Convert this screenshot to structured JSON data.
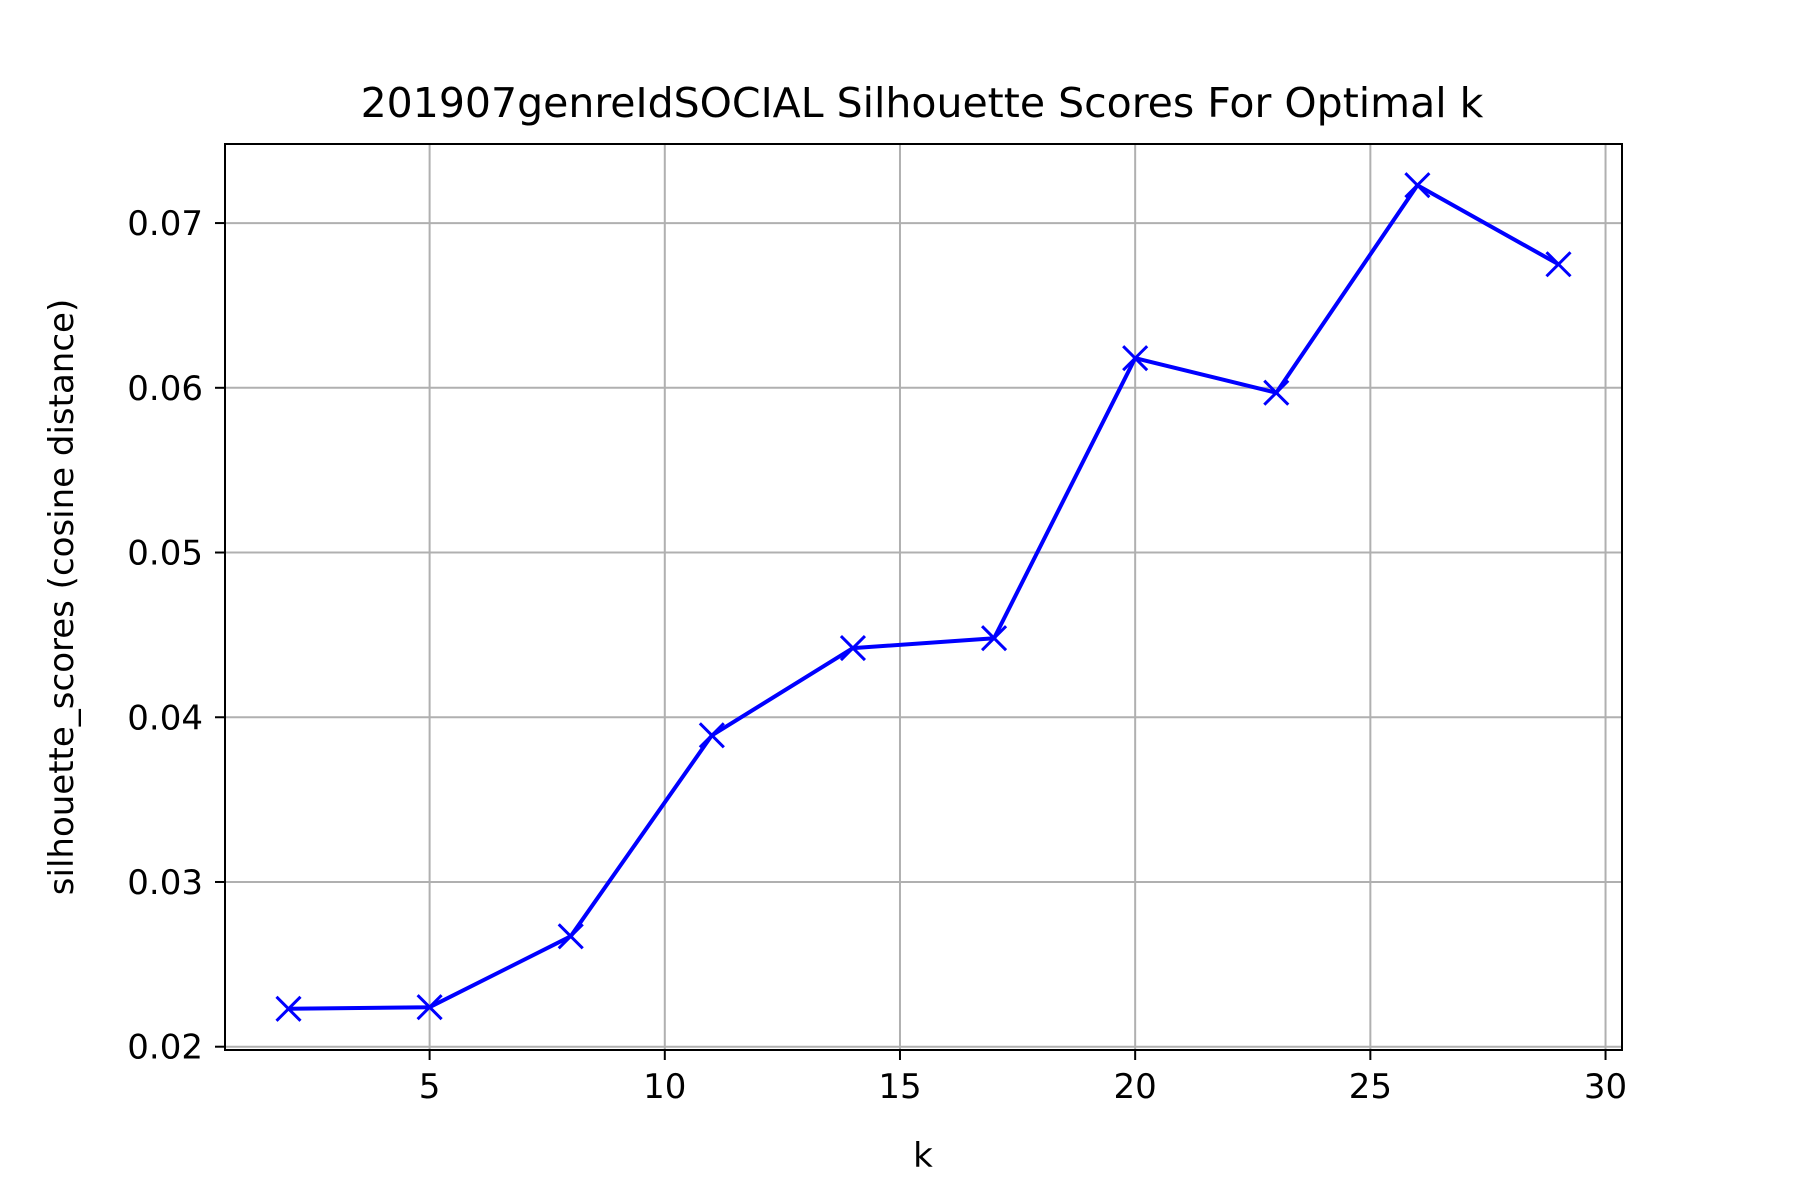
{
  "chart_data": {
    "type": "line",
    "title": "201907genreIdSOCIAL Silhouette Scores For Optimal k",
    "xlabel": "k",
    "ylabel": "silhouette_scores (cosine distance)",
    "x": [
      2,
      5,
      8,
      11,
      14,
      17,
      20,
      23,
      26,
      29
    ],
    "series": [
      {
        "values": [
          0.0223,
          0.0224,
          0.0267,
          0.0389,
          0.0442,
          0.0448,
          0.0618,
          0.0597,
          0.0723,
          0.0675
        ],
        "color": "#0000ff",
        "marker": "x"
      }
    ],
    "xlim": [
      0.65,
      30.35
    ],
    "ylim": [
      0.0198,
      0.0748
    ],
    "xticks": [
      5,
      10,
      15,
      20,
      25,
      30
    ],
    "yticks": [
      0.02,
      0.03,
      0.04,
      0.05,
      0.06,
      0.07
    ],
    "xtick_labels": [
      "5",
      "10",
      "15",
      "20",
      "25",
      "30"
    ],
    "ytick_labels": [
      "0.02",
      "0.03",
      "0.04",
      "0.05",
      "0.06",
      "0.07"
    ],
    "grid": true,
    "legend": "none"
  }
}
